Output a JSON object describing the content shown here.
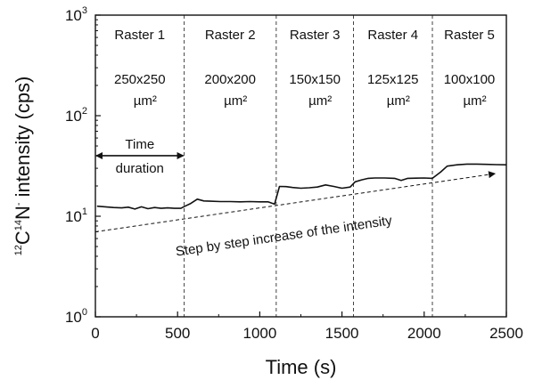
{
  "chart_data": {
    "type": "line",
    "xlabel": "Time (s)",
    "ylabel": {
      "sup1": "12",
      "part1": "C",
      "sup2": "14",
      "part2": "N",
      "sup3": "-",
      "part3": " intensity (cps)"
    },
    "xlim": [
      0,
      2500
    ],
    "ylim": [
      1,
      1000
    ],
    "yscale": "log",
    "xticks": [
      {
        "value": 0,
        "label": "0"
      },
      {
        "value": 500,
        "label": "500"
      },
      {
        "value": 1000,
        "label": "1000"
      },
      {
        "value": 1500,
        "label": "1500"
      },
      {
        "value": 2000,
        "label": "2000"
      },
      {
        "value": 2500,
        "label": "2500"
      }
    ],
    "yticks": [
      {
        "value": 1,
        "base": "10",
        "exp": "0"
      },
      {
        "value": 10,
        "base": "10",
        "exp": "1"
      },
      {
        "value": 100,
        "base": "10",
        "exp": "2"
      },
      {
        "value": 1000,
        "base": "10",
        "exp": "3"
      }
    ],
    "grid": false,
    "legend": "none",
    "series": [
      {
        "color": "#111111",
        "points": [
          [
            10,
            12.6
          ],
          [
            60,
            12.4
          ],
          [
            110,
            12.2
          ],
          [
            160,
            12.1
          ],
          [
            200,
            12.3
          ],
          [
            240,
            11.8
          ],
          [
            280,
            12.4
          ],
          [
            320,
            11.9
          ],
          [
            360,
            12.2
          ],
          [
            400,
            12.0
          ],
          [
            440,
            12.1
          ],
          [
            480,
            12.0
          ],
          [
            520,
            12.0
          ],
          [
            545,
            12.6
          ],
          [
            580,
            13.4
          ],
          [
            620,
            14.8
          ],
          [
            660,
            14.2
          ],
          [
            700,
            14.1
          ],
          [
            760,
            14.0
          ],
          [
            820,
            14.0
          ],
          [
            880,
            13.9
          ],
          [
            940,
            14.0
          ],
          [
            1000,
            13.9
          ],
          [
            1050,
            13.9
          ],
          [
            1090,
            13.2
          ],
          [
            1120,
            19.8
          ],
          [
            1160,
            19.7
          ],
          [
            1200,
            19.3
          ],
          [
            1250,
            19.0
          ],
          [
            1300,
            19.2
          ],
          [
            1350,
            19.5
          ],
          [
            1400,
            20.5
          ],
          [
            1450,
            19.8
          ],
          [
            1500,
            19.0
          ],
          [
            1550,
            19.5
          ],
          [
            1580,
            22.0
          ],
          [
            1620,
            23.0
          ],
          [
            1660,
            23.8
          ],
          [
            1700,
            24.0
          ],
          [
            1760,
            24.0
          ],
          [
            1820,
            23.8
          ],
          [
            1860,
            22.7
          ],
          [
            1900,
            23.8
          ],
          [
            1950,
            23.9
          ],
          [
            2000,
            24.0
          ],
          [
            2050,
            23.8
          ],
          [
            2100,
            27.5
          ],
          [
            2140,
            31.5
          ],
          [
            2200,
            32.5
          ],
          [
            2260,
            33.0
          ],
          [
            2320,
            33.0
          ],
          [
            2380,
            32.8
          ],
          [
            2440,
            32.6
          ],
          [
            2500,
            32.5
          ]
        ]
      }
    ],
    "raster_boundaries": [
      540,
      1100,
      1570,
      2050
    ],
    "rasters": [
      {
        "name": "Raster 1",
        "size": "250x250",
        "unit": "µm²",
        "x_center": 270
      },
      {
        "name": "Raster 2",
        "size": "200x200",
        "unit": "µm²",
        "x_center": 820
      },
      {
        "name": "Raster 3",
        "size": "150x150",
        "unit": "µm²",
        "x_center": 1335
      },
      {
        "name": "Raster 4",
        "size": "125x125",
        "unit": "µm²",
        "x_center": 1810
      },
      {
        "name": "Raster 5",
        "size": "100x100",
        "unit": "µm²",
        "x_center": 2275
      }
    ],
    "annotations": {
      "time_duration": {
        "line1": "Time",
        "line2": "duration",
        "arrow_from": 0,
        "arrow_to": 540,
        "arrow_y": 40
      },
      "trend": {
        "text": "Step by step increase of the intensity",
        "from": [
          0,
          7.0
        ],
        "to": [
          2430,
          26.5
        ],
        "text_x": 1150,
        "text_y": 8.0
      }
    }
  }
}
